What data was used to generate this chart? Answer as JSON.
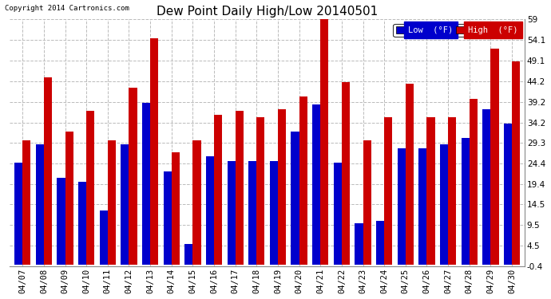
{
  "title": "Dew Point Daily High/Low 20140501",
  "copyright": "Copyright 2014 Cartronics.com",
  "legend_low": "Low  (°F)",
  "legend_high": "High  (°F)",
  "dates": [
    "04/07",
    "04/08",
    "04/09",
    "04/10",
    "04/11",
    "04/12",
    "04/13",
    "04/14",
    "04/15",
    "04/16",
    "04/17",
    "04/18",
    "04/19",
    "04/20",
    "04/21",
    "04/22",
    "04/23",
    "04/24",
    "04/25",
    "04/26",
    "04/27",
    "04/28",
    "04/29",
    "04/30"
  ],
  "low_values": [
    24.5,
    29.0,
    21.0,
    20.0,
    13.0,
    29.0,
    39.0,
    22.5,
    5.0,
    26.0,
    25.0,
    25.0,
    25.0,
    32.0,
    38.5,
    24.5,
    10.0,
    10.5,
    28.0,
    28.0,
    29.0,
    30.5,
    37.5,
    34.0
  ],
  "high_values": [
    30.0,
    45.0,
    32.0,
    37.0,
    30.0,
    42.5,
    54.5,
    27.0,
    30.0,
    36.0,
    37.0,
    35.5,
    37.5,
    40.5,
    59.0,
    44.0,
    30.0,
    35.5,
    43.5,
    35.5,
    35.5,
    40.0,
    52.0,
    49.0
  ],
  "bar_color_low": "#0000cc",
  "bar_color_high": "#cc0000",
  "background_color": "#ffffff",
  "plot_bg_color": "#ffffff",
  "ylim_min": -0.4,
  "ylim_max": 59.0,
  "yticks": [
    -0.4,
    4.5,
    9.5,
    14.5,
    19.4,
    24.4,
    29.3,
    34.2,
    39.2,
    44.2,
    49.1,
    54.1,
    59.0
  ],
  "grid_color": "#bbbbbb",
  "title_fontsize": 11,
  "tick_fontsize": 7.5,
  "bar_width": 0.38
}
